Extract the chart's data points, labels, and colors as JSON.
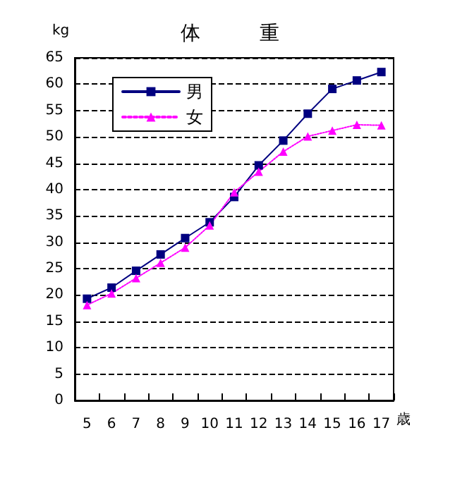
{
  "chart_data": {
    "type": "line",
    "title": "体　　　重",
    "ylabel": "kg",
    "xlabel": "歳",
    "categories": [
      "5",
      "6",
      "7",
      "8",
      "9",
      "10",
      "11",
      "12",
      "13",
      "14",
      "15",
      "16",
      "17"
    ],
    "series": [
      {
        "name": "男",
        "color": "#000080",
        "marker": "square",
        "line_style": "solid",
        "values": [
          19.3,
          21.4,
          24.6,
          27.7,
          30.8,
          33.8,
          38.6,
          44.6,
          49.3,
          54.4,
          59.1,
          60.7,
          62.3
        ]
      },
      {
        "name": "女",
        "color": "#ff00ff",
        "marker": "triangle",
        "line_style": "dotted",
        "values": [
          18.1,
          20.3,
          23.2,
          26.1,
          29.0,
          33.2,
          39.5,
          43.4,
          47.2,
          50.1,
          51.2,
          52.3,
          52.2
        ]
      }
    ],
    "ylim": [
      0,
      65
    ],
    "yticks": [
      0,
      5,
      10,
      15,
      20,
      25,
      30,
      35,
      40,
      45,
      50,
      55,
      60,
      65
    ],
    "grid": "y",
    "legend": "top left"
  }
}
